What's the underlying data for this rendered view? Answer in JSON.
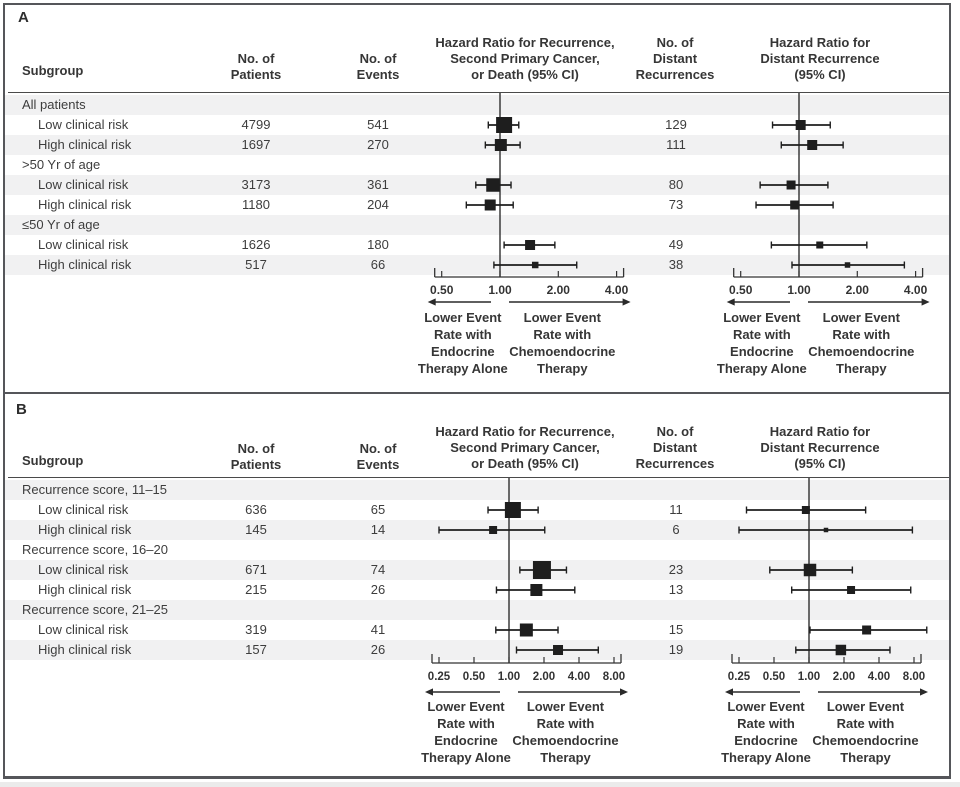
{
  "chart_data": [
    {
      "panel": "A",
      "type": "forest",
      "columns": {
        "subgroup": "Subgroup",
        "patients": [
          "No. of",
          "Patients"
        ],
        "events": [
          "No. of",
          "Events"
        ],
        "hr_recurrence": [
          "Hazard Ratio for Recurrence,",
          "Second Primary Cancer,",
          "or Death (95% CI)"
        ],
        "distant": [
          "No. of",
          "Distant",
          "Recurrences"
        ],
        "hr_distant": [
          "Hazard Ratio for",
          "Distant Recurrence",
          "(95% CI)"
        ]
      },
      "axis_tick_labels": [
        "0.50",
        "1.00",
        "2.00",
        "4.00"
      ],
      "annotations": {
        "left": [
          "Lower Event",
          "Rate with",
          "Endocrine",
          "Therapy Alone"
        ],
        "right": [
          "Lower Event",
          "Rate with",
          "Chemoendocrine",
          "Therapy"
        ]
      },
      "rows": [
        {
          "label": "All patients",
          "group": true
        },
        {
          "label": "Low clinical risk",
          "patients": "4799",
          "events": "541",
          "distant": "129",
          "hr": 1.05,
          "ci": [
            0.87,
            1.25
          ],
          "hr_distant": 1.02,
          "ci_distant": [
            0.73,
            1.45
          ],
          "marker": 16,
          "marker_distant": 10
        },
        {
          "label": "High clinical risk",
          "patients": "1697",
          "events": "270",
          "distant": "111",
          "hr": 1.01,
          "ci": [
            0.84,
            1.27
          ],
          "hr_distant": 1.17,
          "ci_distant": [
            0.81,
            1.69
          ],
          "marker": 12,
          "marker_distant": 10
        },
        {
          "label": ">50 Yr of age",
          "group": true
        },
        {
          "label": "Low clinical risk",
          "patients": "3173",
          "events": "361",
          "distant": "80",
          "hr": 0.92,
          "ci": [
            0.75,
            1.14
          ],
          "hr_distant": 0.91,
          "ci_distant": [
            0.63,
            1.41
          ],
          "marker": 13.5,
          "marker_distant": 9
        },
        {
          "label": "High clinical risk",
          "patients": "1180",
          "events": "204",
          "distant": "73",
          "hr": 0.89,
          "ci": [
            0.67,
            1.17
          ],
          "hr_distant": 0.95,
          "ci_distant": [
            0.6,
            1.5
          ],
          "marker": 11,
          "marker_distant": 9
        },
        {
          "label": "≤50 Yr of age",
          "group": true
        },
        {
          "label": "Low clinical risk",
          "patients": "1626",
          "events": "180",
          "distant": "49",
          "hr": 1.43,
          "ci": [
            1.05,
            1.92
          ],
          "hr_distant": 1.28,
          "ci_distant": [
            0.72,
            2.24
          ],
          "marker": 10,
          "marker_distant": 7
        },
        {
          "label": "High clinical risk",
          "patients": "517",
          "events": "66",
          "distant": "38",
          "hr": 1.52,
          "ci": [
            0.93,
            2.49
          ],
          "hr_distant": 1.78,
          "ci_distant": [
            0.92,
            3.5
          ],
          "marker": 6.5,
          "marker_distant": 5.5
        }
      ]
    },
    {
      "panel": "B",
      "type": "forest",
      "columns": {
        "subgroup": "Subgroup",
        "patients": [
          "No. of",
          "Patients"
        ],
        "events": [
          "No. of",
          "Events"
        ],
        "hr_recurrence": [
          "Hazard Ratio for Recurrence,",
          "Second Primary Cancer,",
          "or Death (95% CI)"
        ],
        "distant": [
          "No. of",
          "Distant",
          "Recurrences"
        ],
        "hr_distant": [
          "Hazard Ratio for",
          "Distant Recurrence",
          "(95% CI)"
        ]
      },
      "axis_tick_labels": [
        "0.25",
        "0.50",
        "1.00",
        "2.00",
        "4.00",
        "8.00"
      ],
      "annotations": {
        "left": [
          "Lower Event",
          "Rate with",
          "Endocrine",
          "Therapy Alone"
        ],
        "right": [
          "Lower Event",
          "Rate with",
          "Chemoendocrine",
          "Therapy"
        ]
      },
      "rows": [
        {
          "label": "Recurrence score, 11–15",
          "group": true
        },
        {
          "label": "Low clinical risk",
          "patients": "636",
          "events": "65",
          "distant": "11",
          "hr": 1.08,
          "ci": [
            0.66,
            1.78
          ],
          "hr_distant": 0.94,
          "ci_distant": [
            0.29,
            3.07
          ],
          "marker": 16,
          "marker_distant": 8
        },
        {
          "label": "High clinical risk",
          "patients": "145",
          "events": "14",
          "distant": "6",
          "hr": 0.73,
          "ci": [
            0.25,
            2.03
          ],
          "hr_distant": 1.4,
          "ci_distant": [
            0.25,
            7.75
          ],
          "marker": 8,
          "marker_distant": 4.5
        },
        {
          "label": "Recurrence score, 16–20",
          "group": true
        },
        {
          "label": "Low clinical risk",
          "patients": "671",
          "events": "74",
          "distant": "23",
          "hr": 1.92,
          "ci": [
            1.24,
            3.12
          ],
          "hr_distant": 1.02,
          "ci_distant": [
            0.46,
            2.36
          ],
          "marker": 18,
          "marker_distant": 12.5
        },
        {
          "label": "High clinical risk",
          "patients": "215",
          "events": "26",
          "distant": "13",
          "hr": 1.72,
          "ci": [
            0.78,
            3.68
          ],
          "hr_distant": 2.3,
          "ci_distant": [
            0.71,
            7.5
          ],
          "marker": 12,
          "marker_distant": 8
        },
        {
          "label": "Recurrence score, 21–25",
          "group": true
        },
        {
          "label": "Low clinical risk",
          "patients": "319",
          "events": "41",
          "distant": "15",
          "hr": 1.41,
          "ci": [
            0.77,
            2.64
          ],
          "hr_distant": 3.13,
          "ci_distant": [
            1.02,
            10.3
          ],
          "marker": 13,
          "marker_distant": 9
        },
        {
          "label": "High clinical risk",
          "patients": "157",
          "events": "26",
          "distant": "19",
          "hr": 2.64,
          "ci": [
            1.16,
            5.86
          ],
          "hr_distant": 1.88,
          "ci_distant": [
            0.77,
            4.97
          ],
          "marker": 10,
          "marker_distant": 10.5
        }
      ]
    }
  ]
}
